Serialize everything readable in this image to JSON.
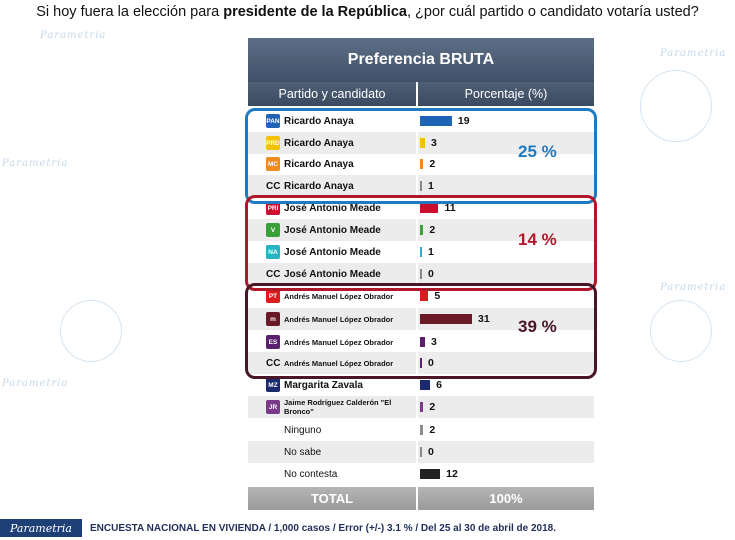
{
  "question_pre": "Si hoy fuera la elección para ",
  "question_bold": "presidente de la República",
  "question_post": ", ¿por cuál partido o candidato votaría usted?",
  "watermark": "Parametria",
  "colors": {
    "pan": "#1f63b5",
    "prd": "#f2c200",
    "mc": "#f08a1c",
    "cc": "#888888",
    "pri": "#c8102e",
    "pvem": "#3aa03a",
    "panal": "#27b3c4",
    "pt": "#d81e1e",
    "morena": "#6a1a24",
    "pes": "#5b1f6e",
    "zavala": "#1a2a6c",
    "bronco": "#7a3a8a",
    "gray": "#8a8a8a",
    "black": "#222222",
    "group_anaya": "#1f7ac2",
    "group_meade": "#b0172a",
    "group_amlo": "#4a1525"
  },
  "table": {
    "title": "Preferencia BRUTA",
    "col_left": "Partido y candidato",
    "col_right": "Porcentaje (%)",
    "total_label": "TOTAL",
    "total_value": "100%"
  },
  "groups": [
    {
      "name": "anaya",
      "value_label": "25 %"
    },
    {
      "name": "meade",
      "value_label": "14 %"
    },
    {
      "name": "amlo",
      "value_label": "39 %"
    }
  ],
  "chart_data": {
    "type": "bar",
    "title": "Preferencia BRUTA",
    "xlabel": "Partido y candidato",
    "ylabel": "Porcentaje (%)",
    "ylim": [
      0,
      31
    ],
    "categories": [
      "PAN - Ricardo Anaya",
      "PRD - Ricardo Anaya",
      "MC - Ricardo Anaya",
      "CC - Ricardo Anaya",
      "PRI - José Antonio Meade",
      "PVEM - José Antonio Meade",
      "PANAL - José Antonio Meade",
      "CC - José Antonio Meade",
      "PT - Andrés Manuel López Obrador",
      "MORENA - Andrés Manuel López Obrador",
      "PES - Andrés Manuel López Obrador",
      "CC - Andrés Manuel López Obrador",
      "Margarita Zavala",
      "Jaime Rodríguez Calderón \"El Bronco\"",
      "Ninguno",
      "No sabe",
      "No contesta"
    ],
    "values": [
      19,
      3,
      2,
      1,
      11,
      2,
      1,
      0,
      5,
      31,
      3,
      0,
      6,
      2,
      2,
      0,
      12
    ],
    "group_totals": [
      {
        "label": "Ricardo Anaya",
        "value": 25
      },
      {
        "label": "José Antonio Meade",
        "value": 14
      },
      {
        "label": "Andrés Manuel López Obrador",
        "value": 39
      }
    ],
    "total": "100%"
  },
  "rows": [
    {
      "kind": "logo",
      "logo_text": "PAN",
      "logo_color": "pan",
      "label": "Ricardo Anaya",
      "style": "bold",
      "value": 19,
      "bar_color": "pan"
    },
    {
      "kind": "logo",
      "logo_text": "PRD",
      "logo_color": "prd",
      "label": "Ricardo Anaya",
      "style": "bold",
      "value": 3,
      "bar_color": "prd"
    },
    {
      "kind": "logo",
      "logo_text": "MC",
      "logo_color": "mc",
      "label": "Ricardo Anaya",
      "style": "bold",
      "value": 2,
      "bar_color": "mc"
    },
    {
      "kind": "cc",
      "cc_text": "CC",
      "label": "Ricardo Anaya",
      "style": "bold",
      "value": 1,
      "bar_color": "cc"
    },
    {
      "kind": "logo",
      "logo_text": "PRI",
      "logo_color": "pri",
      "label": "José Antonio Meade",
      "style": "bold",
      "value": 11,
      "bar_color": "pri"
    },
    {
      "kind": "logo",
      "logo_text": "V",
      "logo_color": "pvem",
      "label": "José Antonio Meade",
      "style": "bold",
      "value": 2,
      "bar_color": "pvem"
    },
    {
      "kind": "logo",
      "logo_text": "NA",
      "logo_color": "panal",
      "label": "José Antonio Meade",
      "style": "bold",
      "value": 1,
      "bar_color": "panal"
    },
    {
      "kind": "cc",
      "cc_text": "CC",
      "label": "José Antonio Meade",
      "style": "bold",
      "value": 0,
      "bar_color": "cc"
    },
    {
      "kind": "logo",
      "logo_text": "PT",
      "logo_color": "pt",
      "label": "Andrés Manuel López Obrador",
      "style": "small",
      "value": 5,
      "bar_color": "pt"
    },
    {
      "kind": "logo",
      "logo_text": "m",
      "logo_color": "morena",
      "label": "Andrés Manuel López Obrador",
      "style": "small",
      "value": 31,
      "bar_color": "morena"
    },
    {
      "kind": "logo",
      "logo_text": "ES",
      "logo_color": "pes",
      "label": "Andrés Manuel López Obrador",
      "style": "small",
      "value": 3,
      "bar_color": "pes"
    },
    {
      "kind": "cc",
      "cc_text": "CC",
      "label": "Andrés Manuel López Obrador",
      "style": "small",
      "value": 0,
      "bar_color": "pes"
    },
    {
      "kind": "logo",
      "logo_text": "MZ",
      "logo_color": "zavala",
      "label": "Margarita Zavala",
      "style": "bold",
      "value": 6,
      "bar_color": "zavala"
    },
    {
      "kind": "logo",
      "logo_text": "JR",
      "logo_color": "bronco",
      "label": "Jaime Rodríguez Calderón \"El Bronco\"",
      "style": "small-wrap",
      "value": 2,
      "bar_color": "bronco"
    },
    {
      "kind": "none",
      "label": "Ninguno",
      "style": "plain",
      "value": 2,
      "bar_color": "gray"
    },
    {
      "kind": "none",
      "label": "No sabe",
      "style": "plain",
      "value": 0,
      "bar_color": "gray"
    },
    {
      "kind": "none",
      "label": "No contesta",
      "style": "plain",
      "value": 12,
      "bar_color": "black"
    }
  ],
  "footer": {
    "brand": "Parametria",
    "source": "ENCUESTA NACIONAL EN VIVIENDA / 1,000 casos / Error (+/-) 3.1 % / Del 25 al 30 de abril de 2018."
  }
}
